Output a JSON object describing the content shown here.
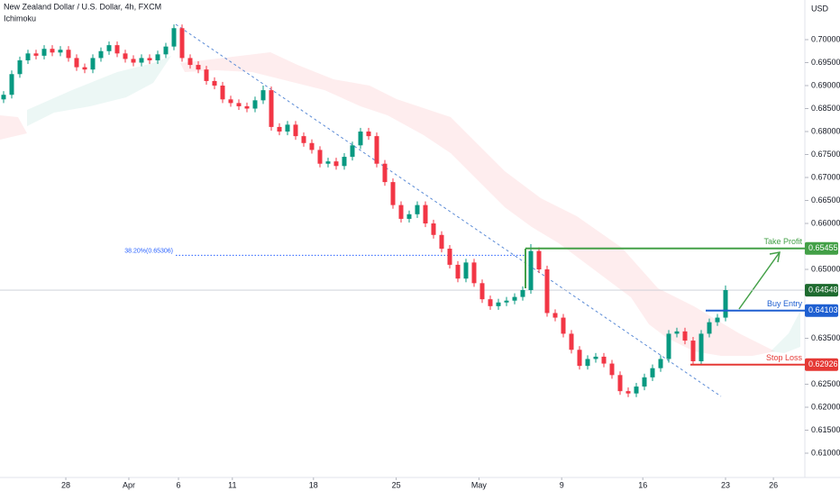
{
  "chart_data": {
    "type": "candlestick",
    "title": "New Zealand Dollar / U.S. Dollar, 4h, FXCM",
    "subtitle": "Ichimoku",
    "y_label": "USD",
    "up_color": "#089981",
    "down_color": "#f23645",
    "open": [
      0.687,
      0.688,
      0.6925,
      0.6955,
      0.697,
      0.6965,
      0.698,
      0.6972,
      0.6978,
      0.696,
      0.694,
      0.6935,
      0.696,
      0.6975,
      0.6988,
      0.697,
      0.6958,
      0.695,
      0.696,
      0.6955,
      0.6968,
      0.6985,
      0.7025,
      0.696,
      0.6945,
      0.6935,
      0.691,
      0.69,
      0.687,
      0.6862,
      0.6855,
      0.685,
      0.6868,
      0.689,
      0.681,
      0.68,
      0.6815,
      0.679,
      0.6775,
      0.676,
      0.673,
      0.6735,
      0.6725,
      0.6745,
      0.677,
      0.68,
      0.679,
      0.673,
      0.669,
      0.664,
      0.661,
      0.662,
      0.664,
      0.66,
      0.6575,
      0.6545,
      0.651,
      0.648,
      0.6515,
      0.647,
      0.6435,
      0.642,
      0.6428,
      0.6432,
      0.644,
      0.6455,
      0.654,
      0.65,
      0.6405,
      0.6395,
      0.636,
      0.6325,
      0.629,
      0.6305,
      0.631,
      0.6295,
      0.627,
      0.6235,
      0.623,
      0.6245,
      0.6265,
      0.6285,
      0.6305,
      0.636,
      0.6365,
      0.6345,
      0.63,
      0.636,
      0.6385,
      0.6395
    ],
    "high": [
      0.6888,
      0.6933,
      0.6963,
      0.6978,
      0.6978,
      0.6988,
      0.6988,
      0.6986,
      0.6986,
      0.6968,
      0.6948,
      0.6968,
      0.6983,
      0.6996,
      0.6996,
      0.6978,
      0.6966,
      0.6968,
      0.6968,
      0.6976,
      0.6993,
      0.7033,
      0.7033,
      0.6968,
      0.6953,
      0.6943,
      0.6918,
      0.6908,
      0.6878,
      0.687,
      0.6863,
      0.6876,
      0.69,
      0.6898,
      0.6818,
      0.6823,
      0.6823,
      0.6798,
      0.6783,
      0.6768,
      0.6743,
      0.6743,
      0.6753,
      0.6778,
      0.6808,
      0.6808,
      0.6798,
      0.6738,
      0.6698,
      0.6648,
      0.6628,
      0.6648,
      0.6648,
      0.6608,
      0.6583,
      0.6553,
      0.6518,
      0.6523,
      0.6523,
      0.6478,
      0.6443,
      0.6436,
      0.644,
      0.6448,
      0.6463,
      0.6555,
      0.6548,
      0.6508,
      0.6413,
      0.6403,
      0.6368,
      0.6333,
      0.6313,
      0.6318,
      0.6318,
      0.6303,
      0.6278,
      0.6243,
      0.6253,
      0.6273,
      0.6293,
      0.6313,
      0.6368,
      0.6373,
      0.6373,
      0.6353,
      0.6368,
      0.6393,
      0.6403,
      0.6465
    ],
    "low": [
      0.6862,
      0.6872,
      0.6917,
      0.6947,
      0.6957,
      0.6957,
      0.6964,
      0.6964,
      0.6952,
      0.6932,
      0.6927,
      0.6927,
      0.6952,
      0.6967,
      0.6962,
      0.695,
      0.6942,
      0.6942,
      0.6947,
      0.6947,
      0.696,
      0.6977,
      0.6952,
      0.6937,
      0.6927,
      0.6902,
      0.6892,
      0.6862,
      0.6854,
      0.6847,
      0.6842,
      0.6842,
      0.686,
      0.6802,
      0.6792,
      0.6792,
      0.6782,
      0.6767,
      0.6752,
      0.6722,
      0.6722,
      0.6717,
      0.6717,
      0.6737,
      0.6762,
      0.6782,
      0.6722,
      0.6682,
      0.6632,
      0.6602,
      0.6602,
      0.6612,
      0.6592,
      0.6567,
      0.6537,
      0.6502,
      0.6472,
      0.6472,
      0.6462,
      0.6427,
      0.6412,
      0.6412,
      0.642,
      0.6424,
      0.6432,
      0.6447,
      0.6492,
      0.6397,
      0.6387,
      0.6352,
      0.6317,
      0.6282,
      0.6282,
      0.6297,
      0.6287,
      0.6262,
      0.6227,
      0.6222,
      0.6222,
      0.6237,
      0.6257,
      0.6277,
      0.6297,
      0.6352,
      0.6337,
      0.6292,
      0.6292,
      0.6352,
      0.6377,
      0.6387
    ],
    "close": [
      0.688,
      0.6925,
      0.6955,
      0.697,
      0.6965,
      0.698,
      0.6972,
      0.6978,
      0.696,
      0.694,
      0.6935,
      0.696,
      0.6975,
      0.6988,
      0.697,
      0.6958,
      0.695,
      0.696,
      0.6955,
      0.6968,
      0.6985,
      0.7025,
      0.696,
      0.6945,
      0.6935,
      0.691,
      0.69,
      0.687,
      0.6862,
      0.6855,
      0.685,
      0.6868,
      0.689,
      0.681,
      0.68,
      0.6815,
      0.679,
      0.6775,
      0.676,
      0.673,
      0.6735,
      0.6725,
      0.6745,
      0.677,
      0.68,
      0.679,
      0.673,
      0.669,
      0.664,
      0.661,
      0.662,
      0.664,
      0.66,
      0.6575,
      0.6545,
      0.651,
      0.648,
      0.6515,
      0.647,
      0.6435,
      0.642,
      0.6428,
      0.6432,
      0.644,
      0.6455,
      0.654,
      0.65,
      0.6405,
      0.6395,
      0.636,
      0.6325,
      0.629,
      0.6305,
      0.631,
      0.6295,
      0.627,
      0.6235,
      0.623,
      0.6245,
      0.6265,
      0.6285,
      0.6305,
      0.636,
      0.6365,
      0.6345,
      0.63,
      0.636,
      0.6385,
      0.6395,
      0.6455
    ],
    "xlim": [
      -0.444,
      98.444
    ],
    "ylim": [
      0.60471,
      0.70863
    ],
    "xticks": [
      {
        "value": 7.67,
        "label": "28"
      },
      {
        "value": 15.44,
        "label": "Apr"
      },
      {
        "value": 21.56,
        "label": "6"
      },
      {
        "value": 28.2,
        "label": "11"
      },
      {
        "value": 38.2,
        "label": "18"
      },
      {
        "value": 48.4,
        "label": "25"
      },
      {
        "value": 58.6,
        "label": "May"
      },
      {
        "value": 68.8,
        "label": "9"
      },
      {
        "value": 78.8,
        "label": "16"
      },
      {
        "value": 89,
        "label": "23"
      },
      {
        "value": 94.9,
        "label": "26"
      }
    ],
    "yticks": [
      {
        "value": 0.7,
        "label": "0.70000"
      },
      {
        "value": 0.695,
        "label": "0.69500"
      },
      {
        "value": 0.69,
        "label": "0.69000"
      },
      {
        "value": 0.685,
        "label": "0.68500"
      },
      {
        "value": 0.68,
        "label": "0.68000"
      },
      {
        "value": 0.675,
        "label": "0.67500"
      },
      {
        "value": 0.67,
        "label": "0.67000"
      },
      {
        "value": 0.665,
        "label": "0.66500"
      },
      {
        "value": 0.66,
        "label": "0.66000"
      },
      {
        "value": 0.65,
        "label": "0.65000"
      },
      {
        "value": 0.635,
        "label": "0.63500"
      },
      {
        "value": 0.625,
        "label": "0.62500"
      },
      {
        "value": 0.62,
        "label": "0.62000"
      },
      {
        "value": 0.615,
        "label": "0.61500"
      },
      {
        "value": 0.61,
        "label": "0.61000"
      }
    ],
    "fib": {
      "label": "38.20%(0.65306)",
      "value": 0.65306,
      "color": "#2962ff"
    },
    "last_price": {
      "value": 0.64548,
      "color": "#1e6b2f"
    },
    "levels": [
      {
        "name": "Take Profit",
        "value": 0.65455,
        "color": "#43a047"
      },
      {
        "name": "Buy Entry",
        "value": 0.64103,
        "color": "#1e5fd1"
      },
      {
        "name": "Stop Loss",
        "value": 0.62926,
        "color": "#e53935"
      }
    ]
  }
}
